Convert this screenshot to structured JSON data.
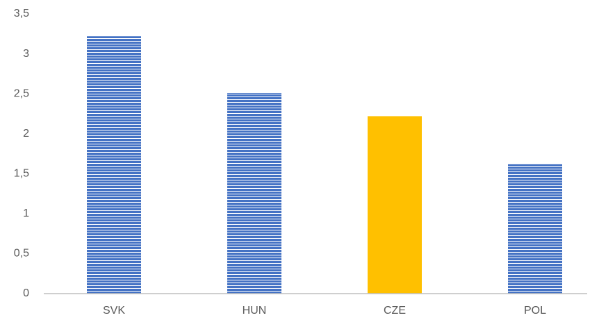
{
  "chart_data": {
    "type": "bar",
    "categories": [
      "SVK",
      "HUN",
      "CZE",
      "POL"
    ],
    "values": [
      3.22,
      2.51,
      2.22,
      1.62
    ],
    "colors": [
      "#4472c4",
      "#4472c4",
      "#ffc000",
      "#4472c4"
    ],
    "fills": [
      "horizontal-stripes",
      "horizontal-stripes",
      "solid",
      "horizontal-stripes"
    ],
    "ylim": [
      0,
      3.5
    ],
    "yticks": [
      0,
      {
        "value": 0.5,
        "label": "0,5"
      },
      1,
      {
        "value": 1.5,
        "label": "1,5"
      },
      2,
      {
        "value": 2.5,
        "label": "2,5"
      },
      3,
      {
        "value": 3.5,
        "label": "3,5"
      }
    ],
    "grid": false
  }
}
